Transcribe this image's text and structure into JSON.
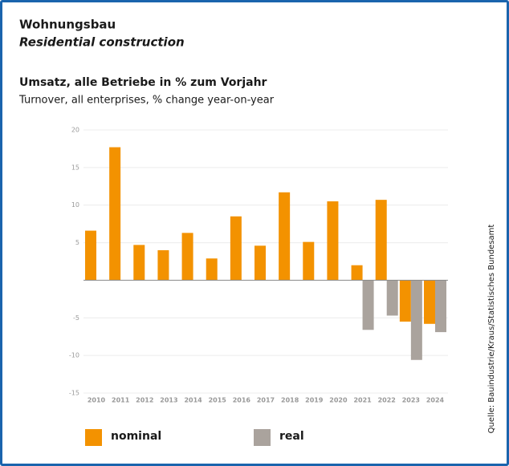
{
  "chart_data": {
    "type": "bar",
    "title": "Wohnungsbau",
    "subtitle": "Residential construction",
    "chart_title": "Umsatz, alle Betriebe in % zum Vorjahr",
    "chart_subtitle": "Turnover, all enterprises, % change year-on-year",
    "source": "Quelle: Bauindustrie/Kraus/Statistisches Bundesamt",
    "categories": [
      "2010",
      "2011",
      "2012",
      "2013",
      "2014",
      "2015",
      "2016",
      "2017",
      "2018",
      "2019",
      "2020",
      "2021",
      "2022",
      "2023",
      "2024"
    ],
    "series": [
      {
        "name": "nominal",
        "color": "#f39200",
        "values": [
          6.6,
          17.7,
          4.7,
          4.0,
          6.3,
          2.9,
          8.5,
          4.6,
          11.7,
          5.1,
          10.5,
          2.0,
          10.7,
          -5.5,
          -5.8
        ]
      },
      {
        "name": "real",
        "color": "#aaa39d",
        "values": [
          null,
          null,
          null,
          null,
          null,
          null,
          null,
          null,
          null,
          null,
          null,
          -6.6,
          -4.7,
          -10.6,
          -6.9
        ]
      }
    ],
    "ylim": [
      -15,
      20
    ],
    "yticks": [
      -15,
      -10,
      -5,
      5,
      10,
      15,
      20
    ],
    "grid": true
  }
}
